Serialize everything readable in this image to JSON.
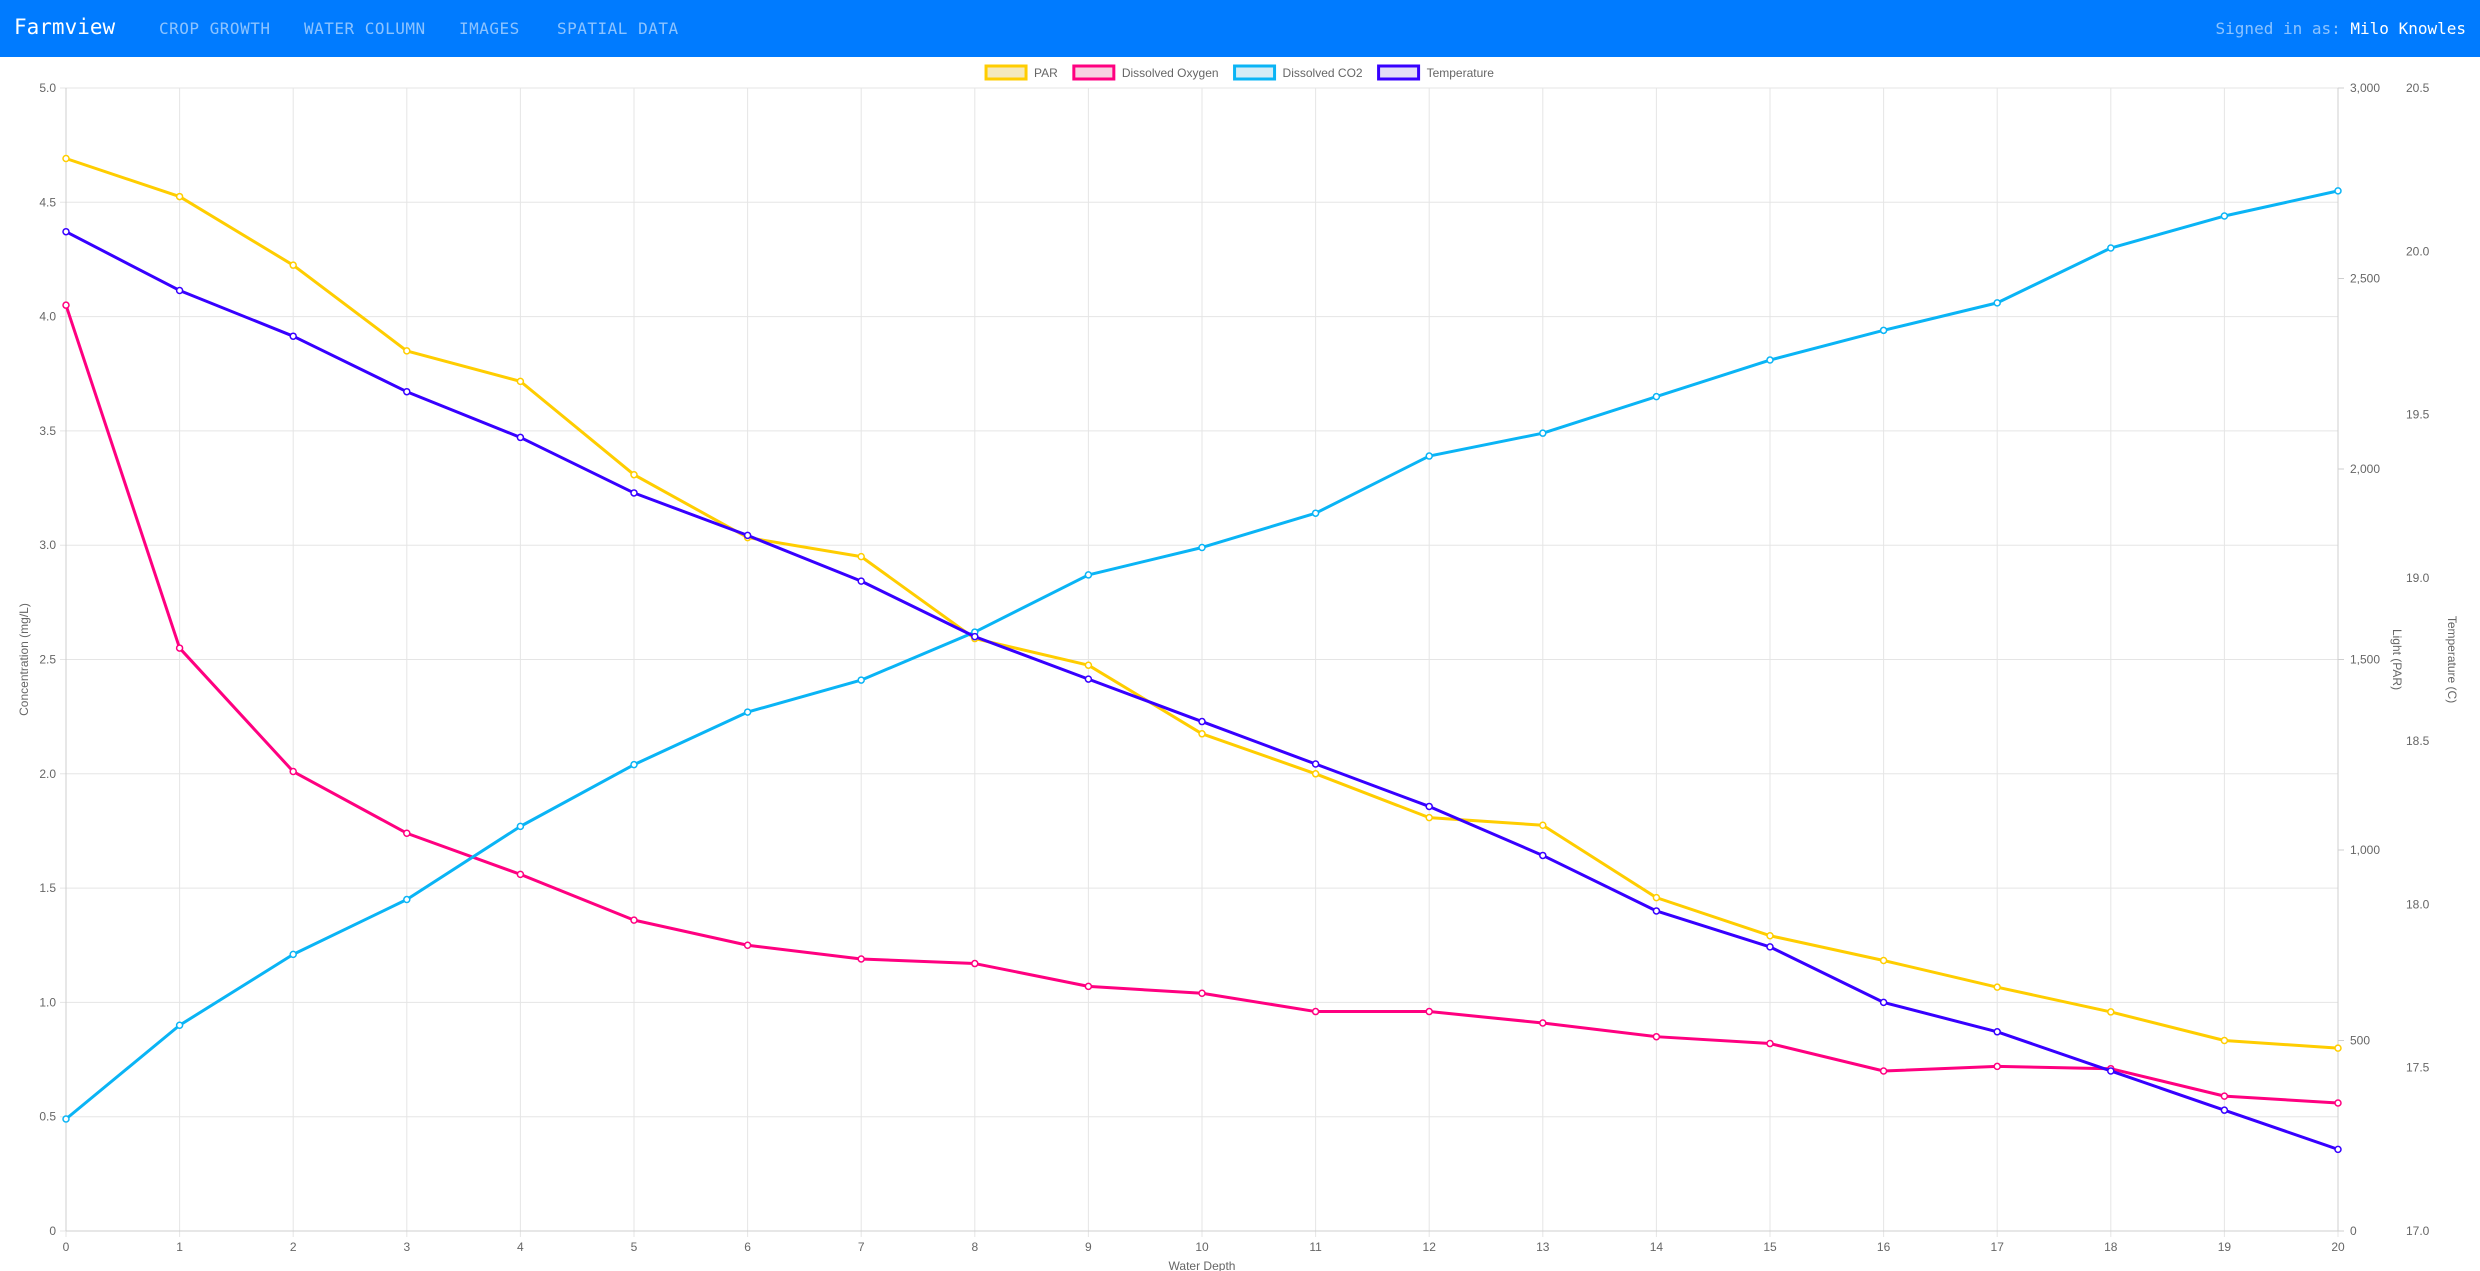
{
  "navbar": {
    "brand": "Farmview",
    "links": [
      "CROP GROWTH",
      "WATER COLUMN",
      "IMAGES",
      "SPATIAL DATA"
    ],
    "signed_in_label": "Signed in as:",
    "user_name": "Milo Knowles",
    "bg_color": "#007bff"
  },
  "chart_data": {
    "type": "line",
    "xlabel": "Water Depth",
    "x": [
      0,
      1,
      2,
      3,
      4,
      5,
      6,
      7,
      8,
      9,
      10,
      11,
      12,
      13,
      14,
      15,
      16,
      17,
      18,
      19,
      20
    ],
    "grid": true,
    "legend_position": "top",
    "axes": {
      "y_left": {
        "label": "Concentration (mg/L)",
        "range": [
          0,
          5
        ],
        "ticks": [
          "0",
          "0.5",
          "1.0",
          "1.5",
          "2.0",
          "2.5",
          "3.0",
          "3.5",
          "4.0",
          "4.5",
          "5.0"
        ]
      },
      "y_par": {
        "label": "Light (PAR)",
        "range": [
          0,
          3000
        ],
        "ticks": [
          "0",
          "500",
          "1,000",
          "1,500",
          "2,000",
          "2,500",
          "3,000"
        ]
      },
      "y_temp": {
        "label": "Temperature (C)",
        "range": [
          17,
          20.5
        ],
        "ticks": [
          "17.0",
          "17.5",
          "18.0",
          "18.5",
          "19.0",
          "19.5",
          "20.0",
          "20.5"
        ]
      }
    },
    "series": [
      {
        "name": "PAR",
        "axis": "y_par",
        "color": "#ffcd00",
        "fill": "#f4e9bd",
        "values": [
          2815,
          2715,
          2535,
          2310,
          2230,
          1985,
          1820,
          1770,
          1555,
          1485,
          1305,
          1200,
          1085,
          1065,
          875,
          775,
          710,
          640,
          575,
          500,
          480
        ]
      },
      {
        "name": "Dissolved Oxygen",
        "axis": "y_left",
        "color": "#ff0080",
        "fill": "#f7d1e1",
        "values": [
          4.05,
          2.55,
          2.01,
          1.74,
          1.56,
          1.36,
          1.25,
          1.19,
          1.17,
          1.07,
          1.04,
          0.96,
          0.96,
          0.91,
          0.85,
          0.82,
          0.7,
          0.72,
          0.71,
          0.59,
          0.56
        ]
      },
      {
        "name": "Dissolved CO2",
        "axis": "y_left",
        "color": "#0ab4f5",
        "fill": "#d4ecf6",
        "values": [
          0.49,
          0.9,
          1.21,
          1.45,
          1.77,
          2.04,
          2.27,
          2.41,
          2.62,
          2.87,
          2.99,
          3.14,
          3.39,
          3.49,
          3.65,
          3.81,
          3.94,
          4.06,
          4.3,
          4.44,
          4.55
        ]
      },
      {
        "name": "Temperature",
        "axis": "y_temp",
        "color": "#3700ff",
        "fill": "#e3dcf7",
        "values": [
          20.06,
          19.88,
          19.74,
          19.57,
          19.43,
          19.26,
          19.13,
          18.99,
          18.82,
          18.69,
          18.56,
          18.43,
          18.3,
          18.15,
          17.98,
          17.87,
          17.7,
          17.61,
          17.49,
          17.37,
          17.25
        ]
      }
    ]
  }
}
